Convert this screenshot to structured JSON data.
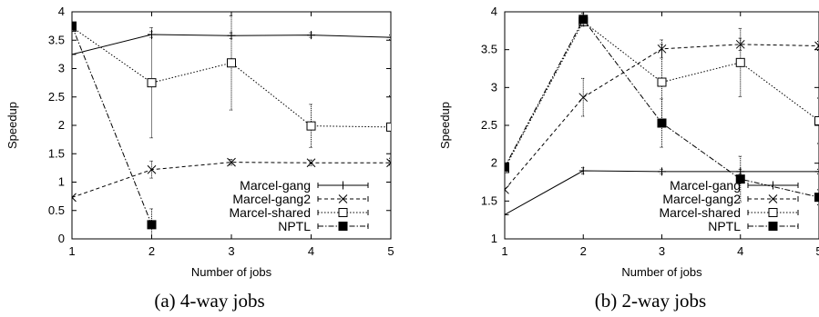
{
  "captions": [
    "(a) 4-way jobs",
    "(b) 2-way jobs"
  ],
  "chart_data": [
    {
      "type": "line",
      "xlabel": "Number of jobs",
      "ylabel": "Speedup",
      "xlim": [
        1,
        5
      ],
      "ylim": [
        0,
        4
      ],
      "xticks": [
        1,
        2,
        3,
        4,
        5
      ],
      "yticks": [
        0,
        0.5,
        1,
        1.5,
        2,
        2.5,
        3,
        3.5,
        4
      ],
      "ytick_labels": [
        "0",
        "0.5",
        "1",
        "1.5",
        "2",
        "2.5",
        "3",
        "3.5",
        "4"
      ],
      "legend_position": "bottom-right",
      "series": [
        {
          "name": "Marcel-gang",
          "marker": "plus",
          "dash": "none",
          "x": [
            1,
            2,
            3,
            4,
            5
          ],
          "y": [
            3.25,
            3.6,
            3.58,
            3.59,
            3.55
          ],
          "err": [
            0,
            0.05,
            0.05,
            0.04,
            0.04
          ]
        },
        {
          "name": "Marcel-gang2",
          "marker": "cross",
          "dash": "4,3",
          "x": [
            1,
            2,
            3,
            4,
            5
          ],
          "y": [
            0.73,
            1.22,
            1.35,
            1.34,
            1.34
          ],
          "err": [
            0,
            0.15,
            0.05,
            0.05,
            0.04
          ]
        },
        {
          "name": "Marcel-shared",
          "marker": "square-open",
          "dash": "1.5,2",
          "x": [
            1,
            2,
            3,
            4,
            5
          ],
          "y": [
            3.73,
            2.75,
            3.1,
            1.99,
            1.97
          ],
          "err": [
            0.05,
            0.97,
            0.83,
            0.38,
            0.55
          ]
        },
        {
          "name": "NPTL",
          "marker": "square-filled",
          "dash": "6,2,1.5,2",
          "x": [
            1,
            2
          ],
          "y": [
            3.75,
            0.25
          ],
          "err": [
            0.05,
            0.28
          ]
        }
      ]
    },
    {
      "type": "line",
      "xlabel": "Number of jobs",
      "ylabel": "Speedup",
      "xlim": [
        1,
        5
      ],
      "ylim": [
        1,
        4
      ],
      "xticks": [
        1,
        2,
        3,
        4,
        5
      ],
      "yticks": [
        1,
        1.5,
        2,
        2.5,
        3,
        3.5,
        4
      ],
      "ytick_labels": [
        "1",
        "1.5",
        "2",
        "2.5",
        "3",
        "3.5",
        "4"
      ],
      "legend_position": "bottom-right",
      "series": [
        {
          "name": "Marcel-gang",
          "marker": "plus",
          "dash": "none",
          "x": [
            1,
            2,
            3,
            4,
            5
          ],
          "y": [
            1.32,
            1.9,
            1.89,
            1.89,
            1.89
          ],
          "err": [
            0,
            0.04,
            0.03,
            0.03,
            0.03
          ]
        },
        {
          "name": "Marcel-gang2",
          "marker": "cross",
          "dash": "4,3",
          "x": [
            1,
            2,
            3,
            4,
            5
          ],
          "y": [
            1.65,
            2.87,
            3.51,
            3.57,
            3.55
          ],
          "err": [
            0,
            0.25,
            0.12,
            0.08,
            0.06
          ]
        },
        {
          "name": "Marcel-shared",
          "marker": "square-open",
          "dash": "1.5,2",
          "x": [
            1,
            2,
            3,
            4,
            5
          ],
          "y": [
            1.93,
            3.87,
            3.07,
            3.33,
            2.56
          ],
          "err": [
            0.05,
            0.06,
            0.5,
            0.45,
            0.3
          ]
        },
        {
          "name": "NPTL",
          "marker": "square-filled",
          "dash": "6,2,1.5,2",
          "x": [
            1,
            2,
            3,
            4,
            5
          ],
          "y": [
            1.95,
            3.9,
            2.53,
            1.79,
            1.55
          ],
          "err": [
            0.05,
            0.08,
            0.32,
            0.3,
            0.1
          ]
        }
      ]
    }
  ]
}
